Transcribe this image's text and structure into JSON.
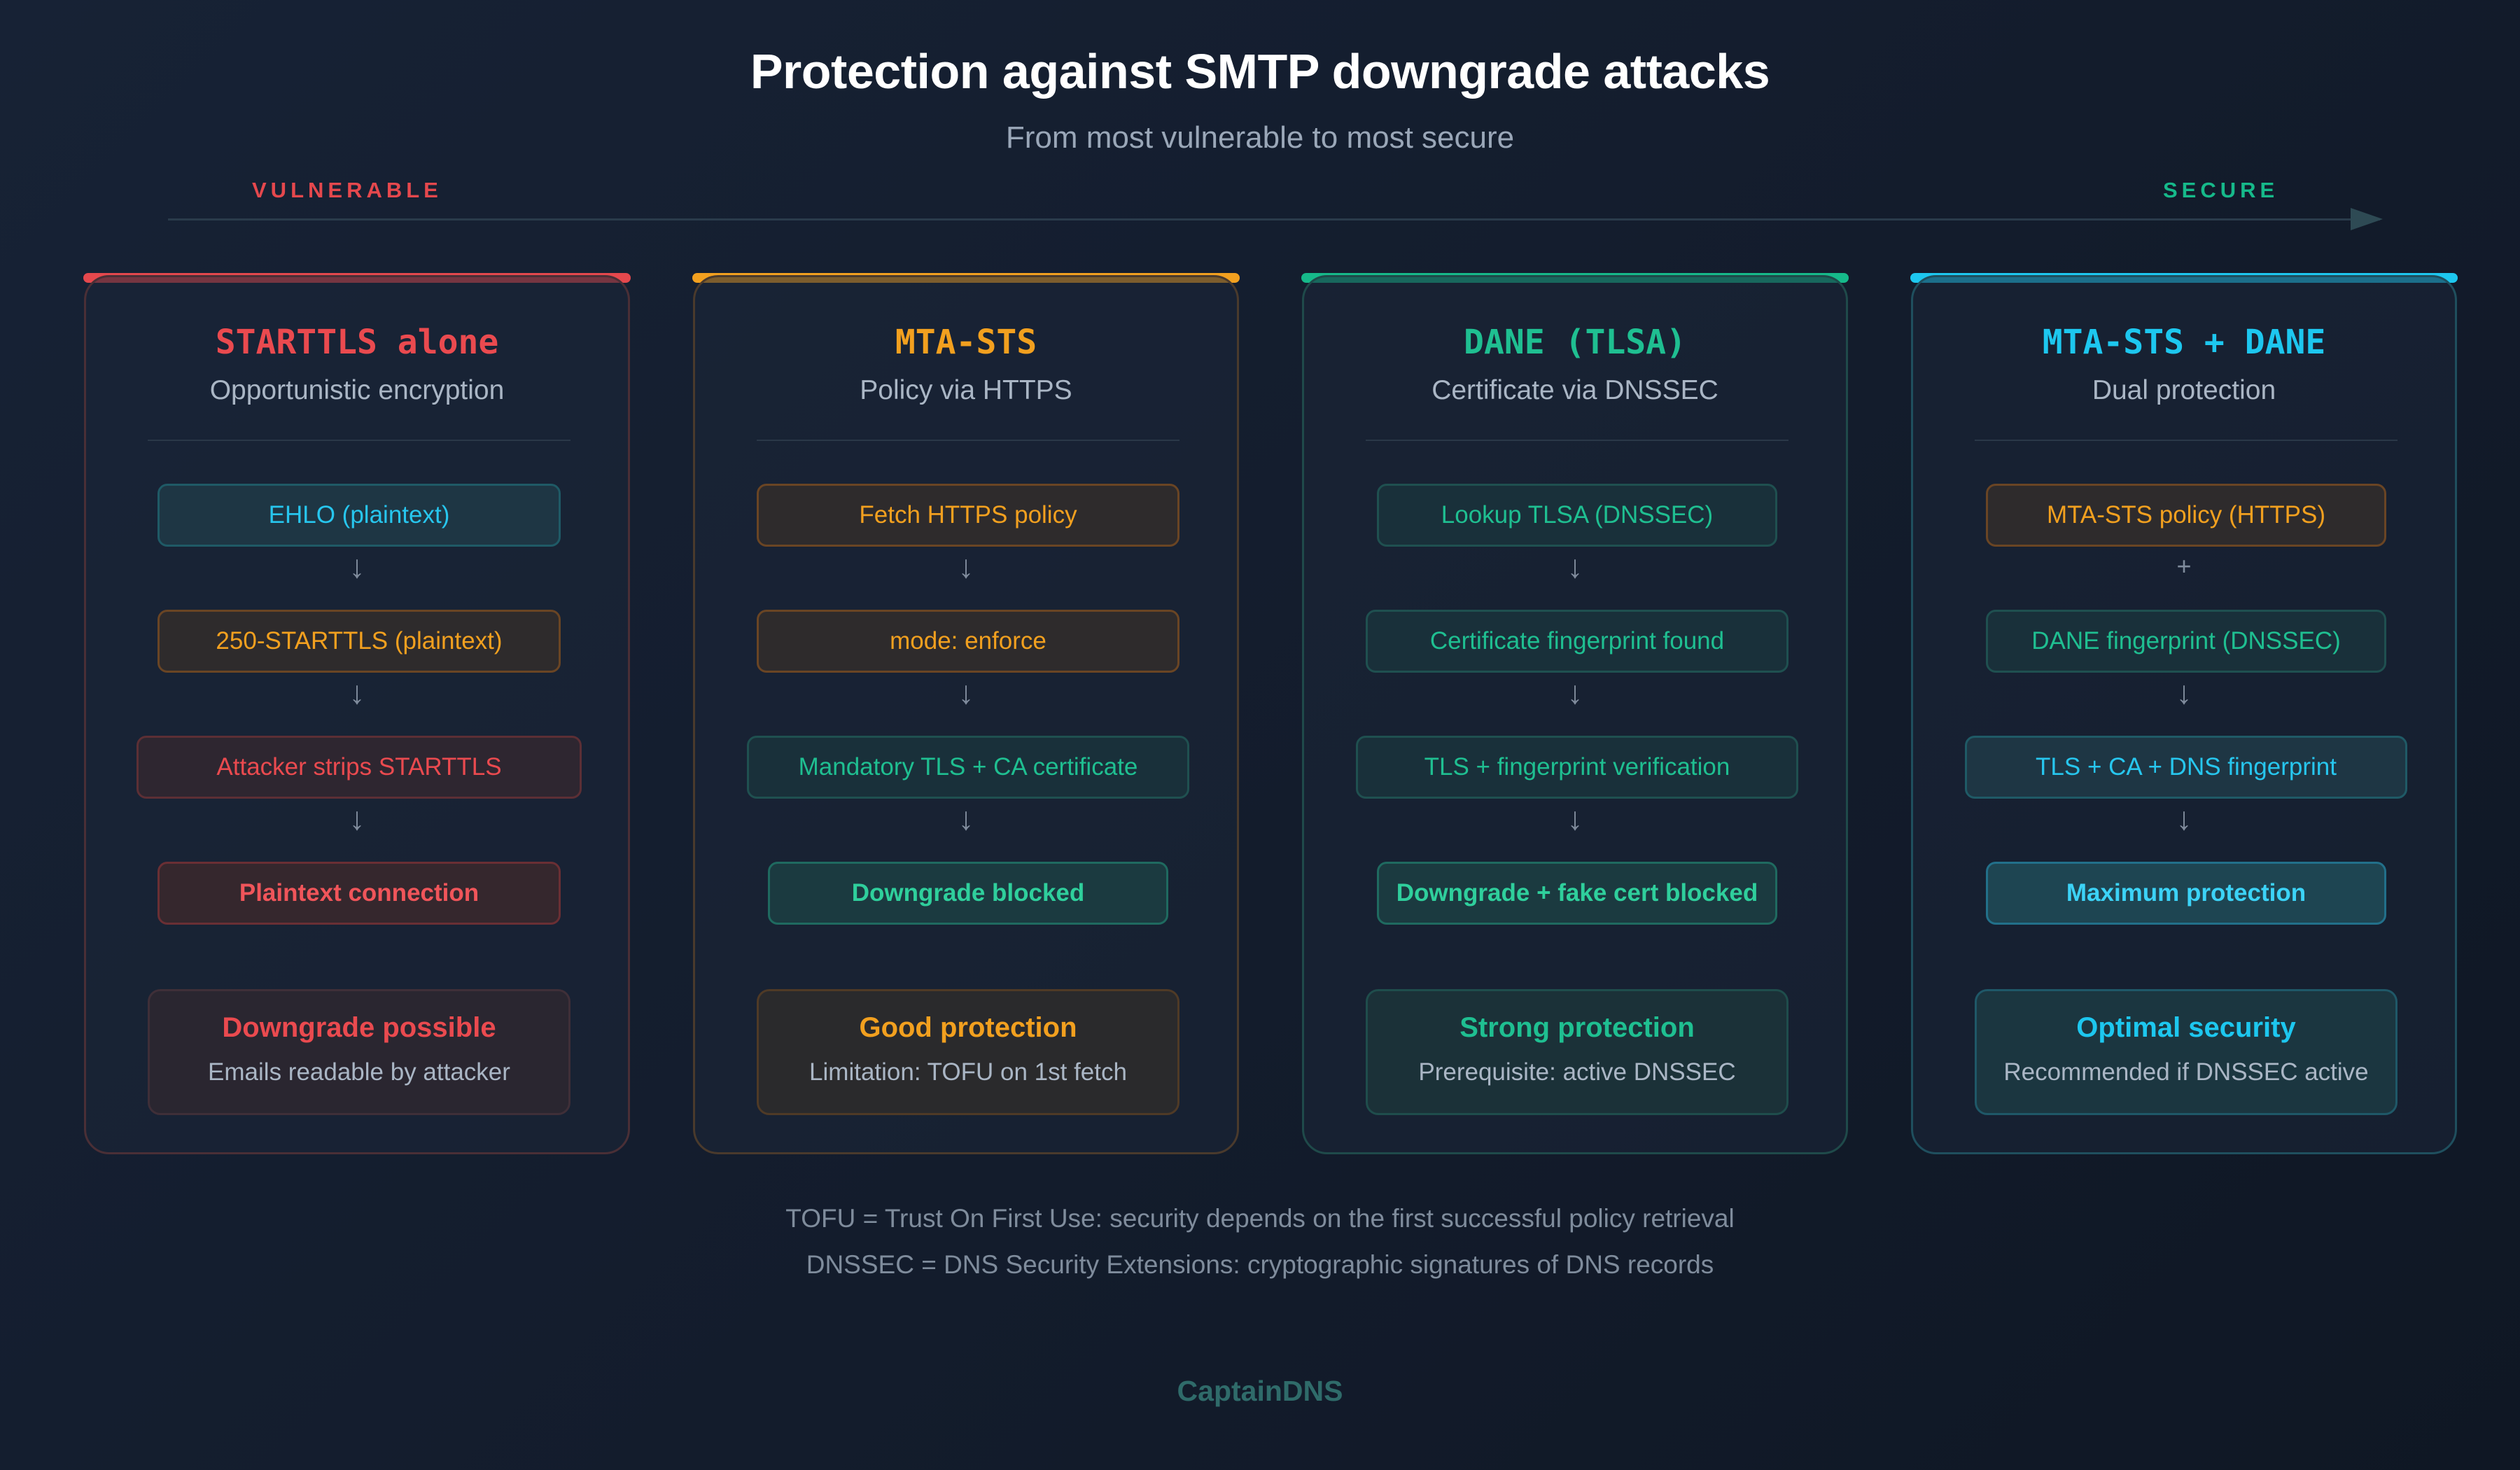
{
  "title": "Protection against SMTP downgrade attacks",
  "subtitle": "From most vulnerable to most secure",
  "axis": {
    "left_label": "VULNERABLE",
    "right_label": "SECURE"
  },
  "colors": {
    "red": "#ea4a4f",
    "orange": "#f2a01f",
    "green": "#1fbf91",
    "cyan": "#1dc7ef"
  },
  "cards": [
    {
      "title": "STARTTLS alone",
      "subtitle": "Opportunistic encryption",
      "steps": [
        {
          "label": "EHLO (plaintext)"
        },
        {
          "label": "250-STARTTLS (plaintext)"
        },
        {
          "label": "Attacker strips STARTTLS"
        },
        {
          "label": "Plaintext connection"
        }
      ],
      "connectors": [
        "↓",
        "↓",
        "↓"
      ],
      "result": {
        "title": "Downgrade possible",
        "desc": "Emails readable by attacker"
      }
    },
    {
      "title": "MTA-STS",
      "subtitle": "Policy via HTTPS",
      "steps": [
        {
          "label": "Fetch HTTPS policy"
        },
        {
          "label": "mode: enforce"
        },
        {
          "label": "Mandatory TLS + CA certificate"
        },
        {
          "label": "Downgrade blocked"
        }
      ],
      "connectors": [
        "↓",
        "↓",
        "↓"
      ],
      "result": {
        "title": "Good protection",
        "desc": "Limitation: TOFU on 1st fetch"
      }
    },
    {
      "title": "DANE (TLSA)",
      "subtitle": "Certificate via DNSSEC",
      "steps": [
        {
          "label": "Lookup TLSA (DNSSEC)"
        },
        {
          "label": "Certificate fingerprint found"
        },
        {
          "label": "TLS + fingerprint verification"
        },
        {
          "label": "Downgrade + fake cert blocked"
        }
      ],
      "connectors": [
        "↓",
        "↓",
        "↓"
      ],
      "result": {
        "title": "Strong protection",
        "desc": "Prerequisite: active DNSSEC"
      }
    },
    {
      "title": "MTA-STS + DANE",
      "subtitle": "Dual protection",
      "steps": [
        {
          "label": "MTA-STS policy (HTTPS)"
        },
        {
          "label": "DANE fingerprint (DNSSEC)"
        },
        {
          "label": "TLS + CA + DNS fingerprint"
        },
        {
          "label": "Maximum protection"
        }
      ],
      "connectors": [
        "+",
        "↓",
        "↓"
      ],
      "result": {
        "title": "Optimal security",
        "desc": "Recommended if DNSSEC active"
      }
    }
  ],
  "footnotes": [
    "TOFU = Trust On First Use: security depends on the first successful policy retrieval",
    "DNSSEC = DNS Security Extensions: cryptographic signatures of DNS records"
  ],
  "brand": "CaptainDNS"
}
